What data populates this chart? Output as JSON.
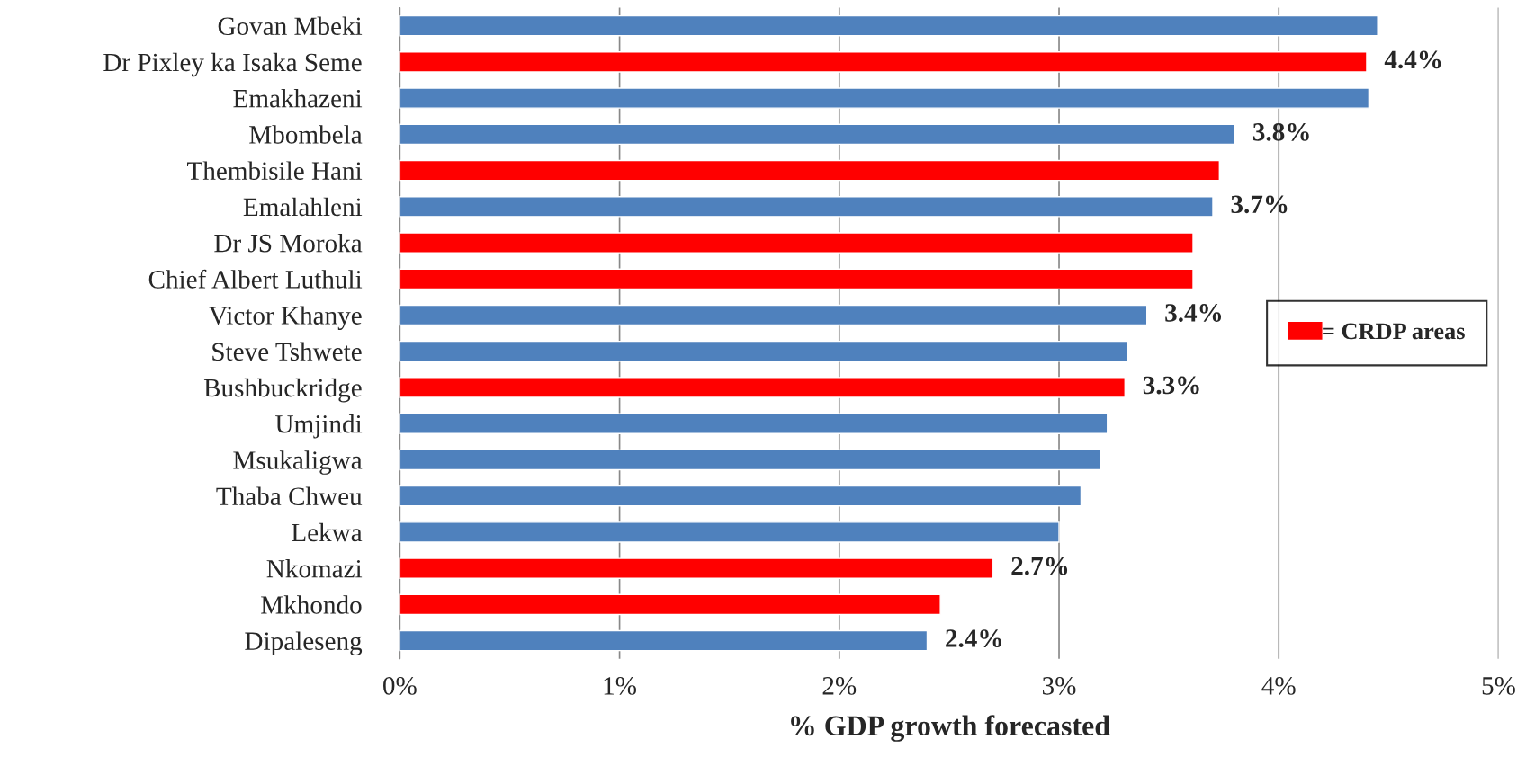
{
  "chart_data": {
    "type": "bar",
    "orientation": "horizontal",
    "xlabel": "% GDP growth forecasted",
    "categories": [
      "Govan Mbeki",
      "Dr Pixley ka Isaka Seme",
      "Emakhazeni",
      "Mbombela",
      "Thembisile Hani",
      "Emalahleni",
      "Dr JS Moroka",
      "Chief Albert Luthuli",
      "Victor Khanye",
      "Steve Tshwete",
      "Bushbuckridge",
      "Umjindi",
      "Msukaligwa",
      "Thaba Chweu",
      "Lekwa",
      "Nkomazi",
      "Mkhondo",
      "Dipaleseng"
    ],
    "series": [
      {
        "name": "= CRDP areas",
        "color": "#ff0000",
        "values": [
          null,
          4.4,
          null,
          null,
          3.73,
          null,
          3.61,
          3.61,
          null,
          null,
          3.3,
          null,
          null,
          null,
          null,
          2.7,
          2.46,
          null
        ],
        "value_labels": [
          null,
          "4.4%",
          null,
          null,
          null,
          null,
          null,
          null,
          null,
          null,
          "3.3%",
          null,
          null,
          null,
          null,
          "2.7%",
          null,
          null
        ]
      },
      {
        "color": "#4f81bd",
        "values": [
          4.45,
          null,
          4.41,
          3.8,
          null,
          3.7,
          null,
          null,
          3.4,
          3.31,
          null,
          3.22,
          3.19,
          3.1,
          3.0,
          null,
          null,
          2.4
        ],
        "value_labels": [
          null,
          null,
          null,
          "3.8%",
          null,
          "3.7%",
          null,
          null,
          "3.4%",
          null,
          null,
          null,
          null,
          null,
          null,
          null,
          null,
          "2.4%"
        ]
      }
    ],
    "xlim": [
      0,
      5
    ],
    "xticks": [
      {
        "value": 0,
        "label": "0%"
      },
      {
        "value": 1,
        "label": "1%"
      },
      {
        "value": 2,
        "label": "2%"
      },
      {
        "value": 3,
        "label": "3%"
      },
      {
        "value": 4,
        "label": "4%"
      },
      {
        "value": 5,
        "label": "5%"
      }
    ],
    "grid": "x",
    "legend": "right"
  }
}
